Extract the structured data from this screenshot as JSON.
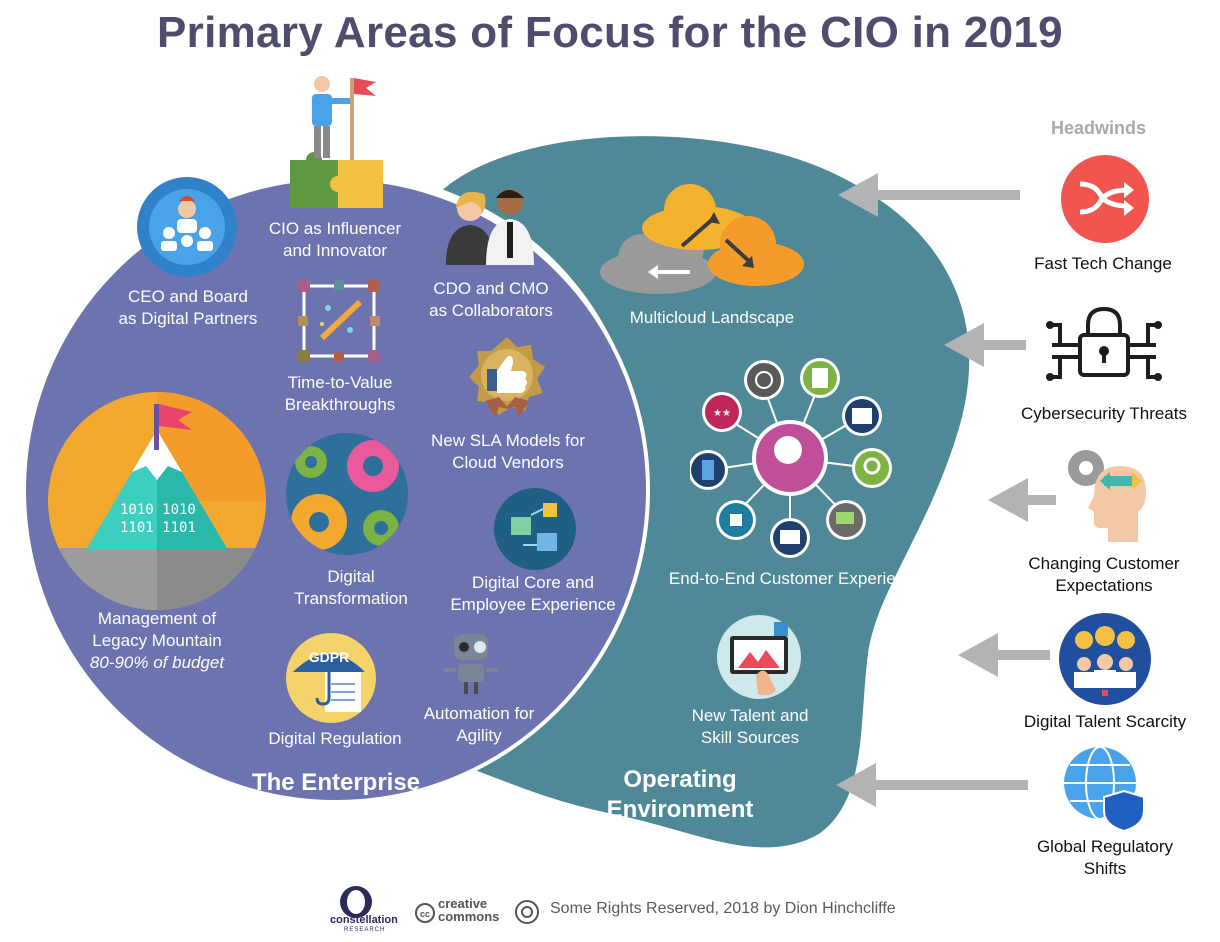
{
  "title": "Primary Areas of Focus for the CIO in 2019",
  "enterprise": {
    "label": "The Enterprise",
    "items": {
      "ceo_board": [
        "CEO and Board",
        "as Digital Partners"
      ],
      "cio_influencer": [
        "CIO as Influencer",
        "and Innovator"
      ],
      "cdo_cmo": [
        "CDO and CMO",
        "as Collaborators"
      ],
      "time_to_value": [
        "Time-to-Value",
        "Breakthroughs"
      ],
      "sla_models": [
        "New SLA Models for",
        "Cloud Vendors"
      ],
      "legacy": [
        "Management of",
        "Legacy Mountain",
        "80-90% of budget"
      ],
      "digital_transformation": [
        "Digital",
        "Transformation"
      ],
      "digital_core": [
        "Digital Core and",
        "Employee Experience"
      ],
      "digital_regulation": [
        "Digital Regulation"
      ],
      "automation": [
        "Automation for",
        "Agility"
      ]
    },
    "icon_text": {
      "gdpr": "GDPR",
      "binary": [
        "1010 1010",
        "1101 1101"
      ]
    }
  },
  "operating": {
    "label": [
      "Operating",
      "Environment"
    ],
    "items": {
      "multicloud": [
        "Multicloud Landscape"
      ],
      "customer_experience": [
        "End-to-End Customer Experience"
      ],
      "talent": [
        "New Talent and",
        "Skill Sources"
      ]
    }
  },
  "headwinds": {
    "title": "Headwinds",
    "items": [
      {
        "label": [
          "Fast Tech Change"
        ],
        "icon": "lightning-arrows-icon"
      },
      {
        "label": [
          "Cybersecurity Threats"
        ],
        "icon": "circuit-lock-icon"
      },
      {
        "label": [
          "Changing Customer",
          "Expectations"
        ],
        "icon": "head-gears-icon"
      },
      {
        "label": [
          "Digital Talent Scarcity"
        ],
        "icon": "lightbulb-team-icon"
      },
      {
        "label": [
          "Global Regulatory",
          "Shifts"
        ],
        "icon": "globe-shield-icon"
      }
    ]
  },
  "footer": {
    "logo_text": "constellation",
    "logo_sub": "RESEARCH",
    "cc_text": [
      "creative",
      "commons"
    ],
    "rights": "Some Rights Reserved, 2018 by Dion Hinchcliffe"
  },
  "colors": {
    "title": "#4f4d6e",
    "enterprise": "#6c73ae",
    "operating": "#4f8896",
    "arrow": "#b3b3b3"
  }
}
